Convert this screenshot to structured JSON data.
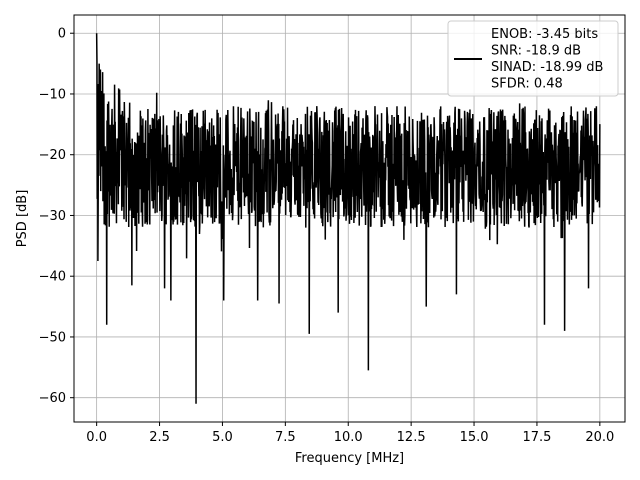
{
  "chart_data": {
    "type": "line",
    "title": "",
    "xlabel": "Frequency [MHz]",
    "ylabel": "PSD [dB]",
    "xlim": [
      -0.9,
      21.0
    ],
    "ylim": [
      -64.0,
      3.0
    ],
    "xticks": [
      0.0,
      2.5,
      5.0,
      7.5,
      10.0,
      12.5,
      15.0,
      17.5,
      20.0
    ],
    "xtick_labels": [
      "0.0",
      "2.5",
      "5.0",
      "7.5",
      "10.0",
      "12.5",
      "15.0",
      "17.5",
      "20.0"
    ],
    "yticks": [
      0,
      -10,
      -20,
      -30,
      -40,
      -50,
      -60
    ],
    "ytick_labels": [
      "0",
      "−10",
      "−20",
      "−30",
      "−40",
      "−50",
      "−60"
    ],
    "grid": true,
    "legend_position": "top-right",
    "series": [
      {
        "name": "ENOB: -3.45 bits\nSNR: -18.9 dB\nSINAD: -18.99 dB\nSFDR: 0.48",
        "color": "#000000",
        "x_range": [
          0.0,
          20.0
        ],
        "noise_band": [
          -32,
          -12
        ],
        "start_value": 0,
        "notable_points": [
          {
            "x": 0.0,
            "y": 0.0
          },
          {
            "x": 0.05,
            "y": -37.5
          },
          {
            "x": 0.1,
            "y": -5.0
          },
          {
            "x": 0.4,
            "y": -48.0
          },
          {
            "x": 1.4,
            "y": -41.5
          },
          {
            "x": 2.7,
            "y": -42.0
          },
          {
            "x": 2.95,
            "y": -44.0
          },
          {
            "x": 3.95,
            "y": -61.0
          },
          {
            "x": 5.05,
            "y": -44.0
          },
          {
            "x": 6.4,
            "y": -44.0
          },
          {
            "x": 7.25,
            "y": -44.5
          },
          {
            "x": 8.45,
            "y": -49.5
          },
          {
            "x": 9.6,
            "y": -46.0
          },
          {
            "x": 10.8,
            "y": -55.5
          },
          {
            "x": 13.1,
            "y": -45.0
          },
          {
            "x": 14.3,
            "y": -43.0
          },
          {
            "x": 17.8,
            "y": -48.0
          },
          {
            "x": 18.6,
            "y": -49.0
          },
          {
            "x": 19.55,
            "y": -42.0
          }
        ]
      }
    ]
  }
}
